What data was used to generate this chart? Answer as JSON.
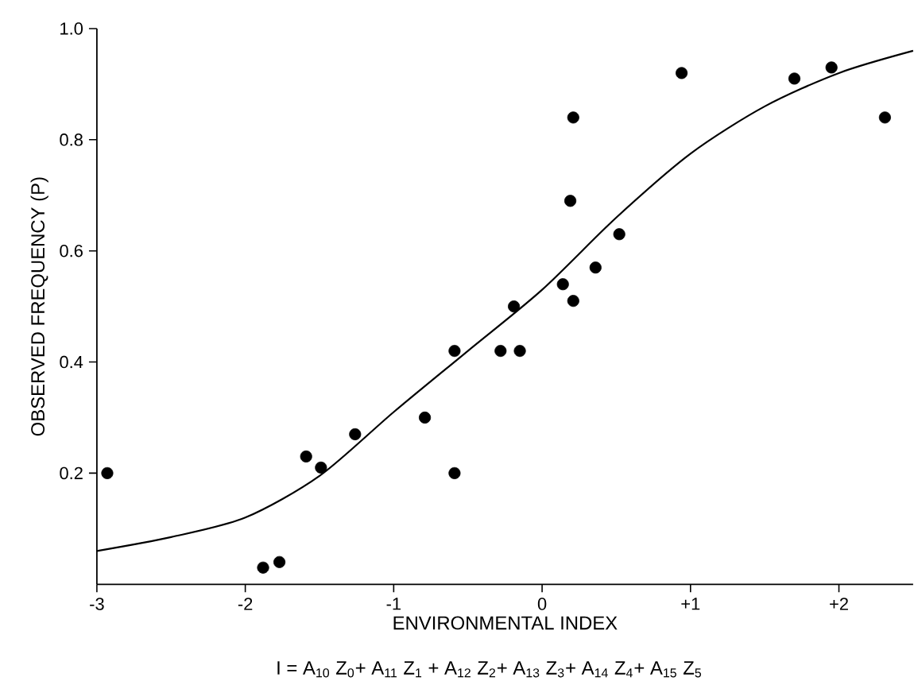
{
  "chart_data": {
    "type": "scatter",
    "xlabel": "ENVIRONMENTAL INDEX",
    "ylabel": "OBSERVED FREQUENCY (P)",
    "annotations": [
      "I = A$_{10}$ Z$_{0}$+ A$_{11}$ Z$_{1}$ + A$_{12}$ Z$_{2}$+ A$_{13}$ Z$_{3}$+ A$_{14}$ Z$_{4}$+ A$_{15}$ Z$_{5}$"
    ],
    "xlim": [
      -3,
      2.5
    ],
    "ylim": [
      0,
      1.0
    ],
    "xticks": [
      -3,
      -2,
      -1,
      0,
      {
        "value": 1,
        "label": "+1"
      },
      {
        "value": 2,
        "label": "+2"
      }
    ],
    "yticks": [
      0.2,
      0.4,
      0.6,
      0.8,
      {
        "value": 1.0,
        "label": "1.0"
      }
    ],
    "grid": false,
    "series": [
      {
        "type": "scatter",
        "marker": "circle",
        "color": "#000000",
        "x": [
          -2.93,
          -1.88,
          -1.77,
          -1.59,
          -1.49,
          -1.26,
          -0.79,
          -0.59,
          -0.59,
          -0.28,
          -0.15,
          -0.19,
          0.14,
          0.21,
          0.36,
          0.52,
          0.19,
          0.21,
          0.94,
          1.7,
          1.95,
          2.31
        ],
        "values": [
          0.2,
          0.03,
          0.04,
          0.23,
          0.21,
          0.27,
          0.3,
          0.42,
          0.2,
          0.42,
          0.42,
          0.5,
          0.54,
          0.51,
          0.57,
          0.63,
          0.69,
          0.84,
          0.92,
          0.91,
          0.93,
          0.84
        ]
      },
      {
        "type": "line",
        "marker": "none",
        "line_style": "solid",
        "color": "#000000",
        "x": [
          -3,
          -2.5,
          -2,
          -1.5,
          -1,
          -0.5,
          0,
          0.5,
          1,
          1.5,
          2,
          2.5
        ],
        "values": [
          0.06,
          0.085,
          0.12,
          0.195,
          0.31,
          0.42,
          0.53,
          0.66,
          0.775,
          0.86,
          0.92,
          0.96
        ]
      }
    ]
  }
}
